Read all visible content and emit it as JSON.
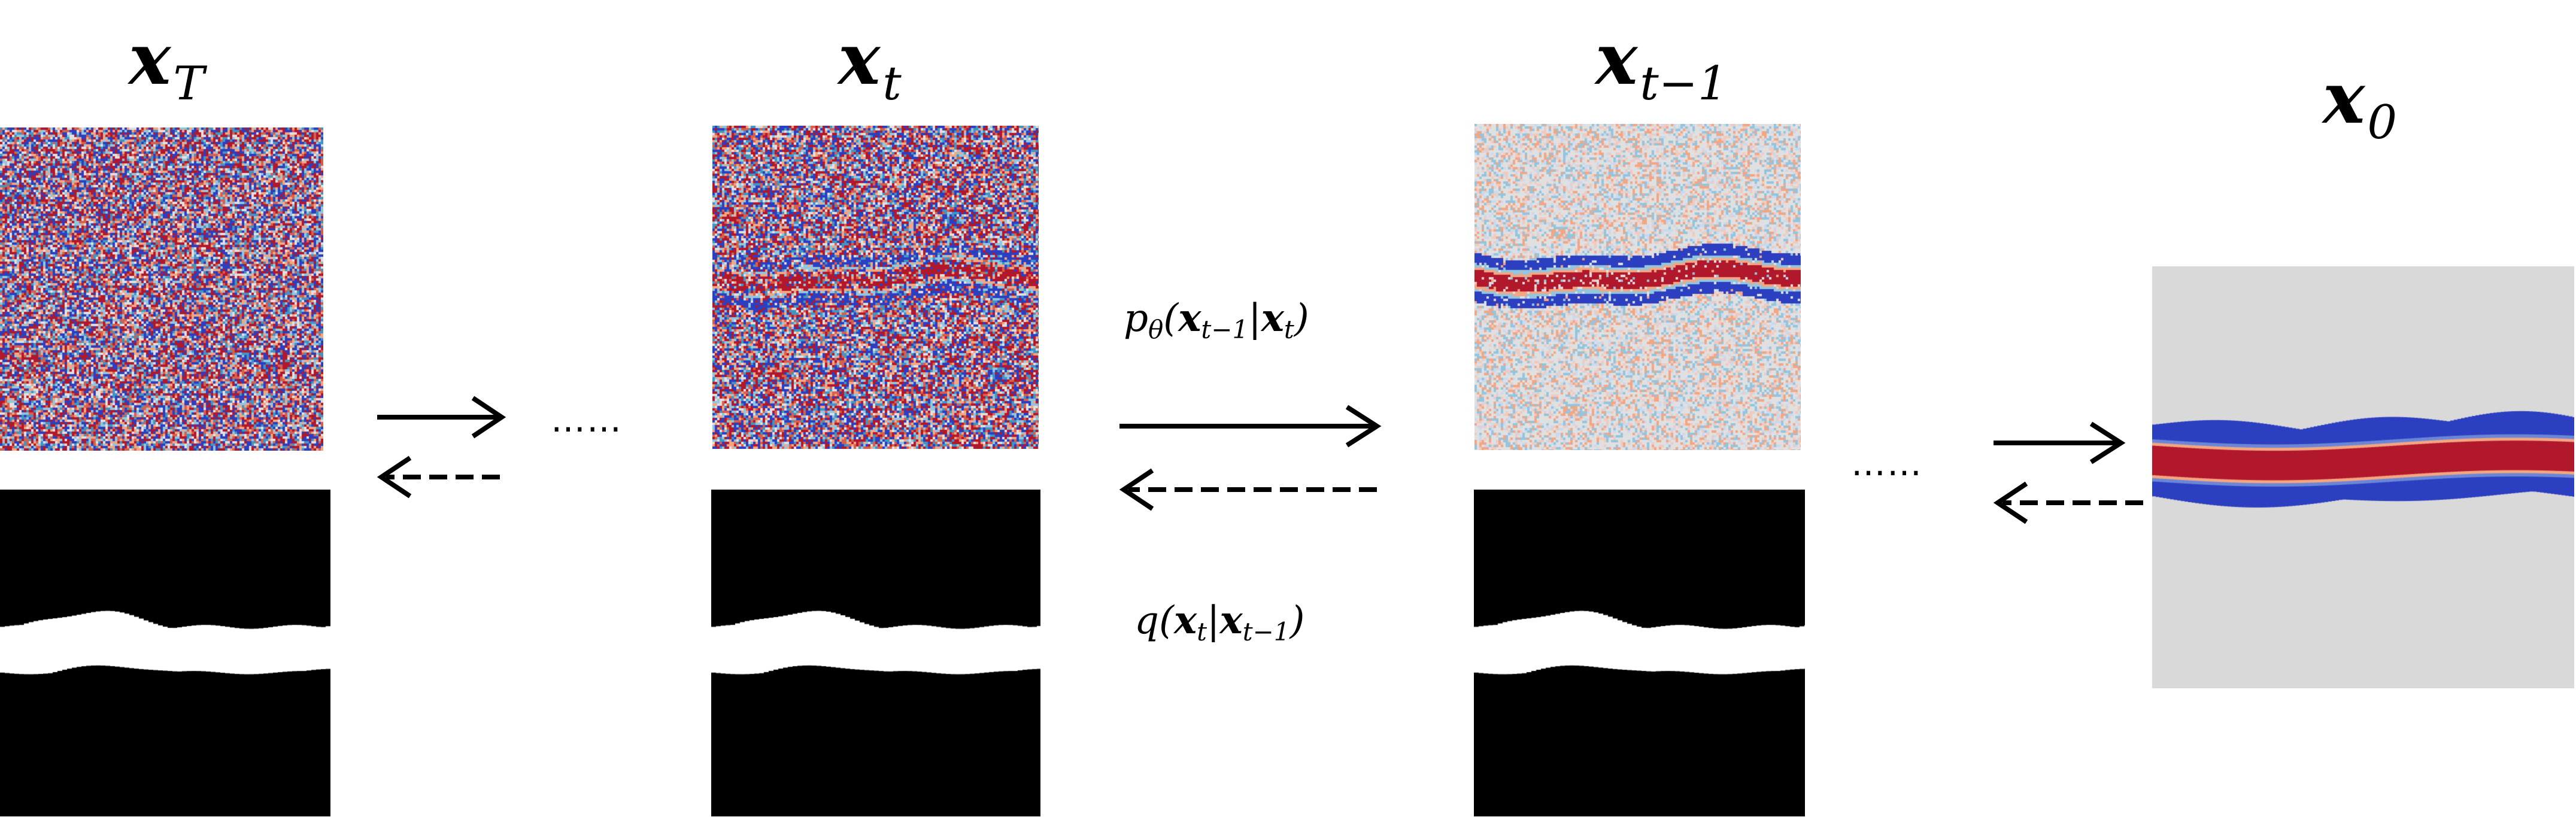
{
  "stages": [
    {
      "key": "xT",
      "symbol": "x",
      "subscript": "T",
      "noise_level": 1.0,
      "has_mask": true,
      "mask_color": "#000000"
    },
    {
      "key": "xt",
      "symbol": "x",
      "subscript": "t",
      "noise_level": 0.82,
      "has_mask": true,
      "mask_color": "#000000"
    },
    {
      "key": "xt1",
      "symbol": "x",
      "subscript": "t−1",
      "noise_level": 0.35,
      "has_mask": true,
      "mask_color": "#000000"
    },
    {
      "key": "x0",
      "symbol": "x",
      "subscript": "0",
      "noise_level": 0.0,
      "has_mask": false,
      "background_color": "#d9d9d9"
    }
  ],
  "reverse_process": {
    "p": "p",
    "theta": "θ",
    "open": "(",
    "x1": "x",
    "x1_sub": "t−1",
    "bar": "|",
    "x2": "x",
    "x2_sub": "t",
    "close": ")"
  },
  "forward_process": {
    "q": "q",
    "open": "(",
    "x1": "x",
    "x1_sub": "t",
    "bar": "|",
    "x2": "x",
    "x2_sub": "t−1",
    "close": ")"
  },
  "ellipsis": [
    "……",
    "……"
  ],
  "colors": {
    "deep_red": "#b2182b",
    "red": "#d6604d",
    "light_red": "#f4a582",
    "neutral": "#e0e0e0",
    "light_blue": "#92c5de",
    "blue": "#4393c3",
    "deep_blue": "#2c3fc0",
    "arrow": "#000000"
  }
}
